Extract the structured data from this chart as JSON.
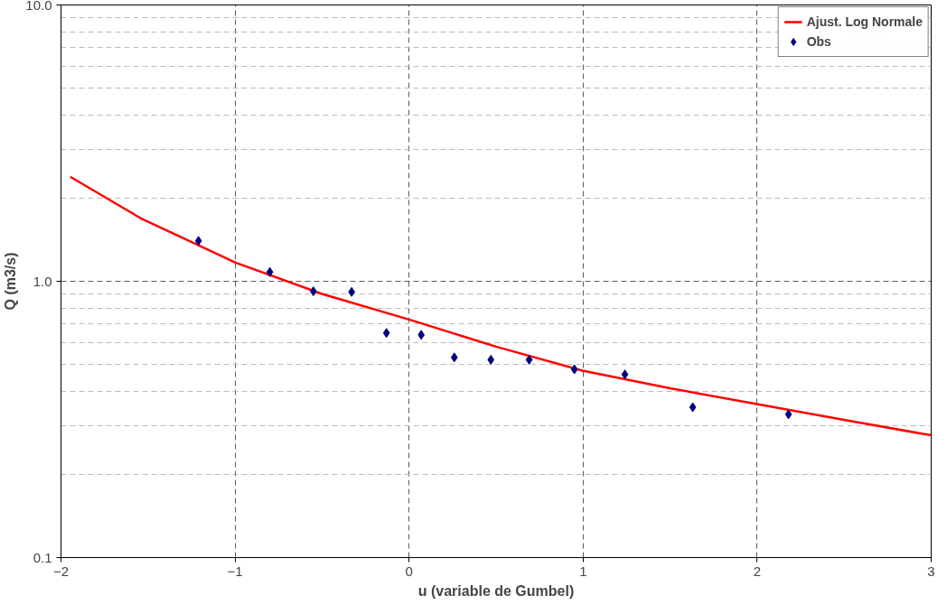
{
  "chart_data": {
    "type": "scatter",
    "xlabel": "u (variable de Gumbel)",
    "ylabel": "Q (m3/s)",
    "log": "y",
    "xlim": [
      -2,
      3
    ],
    "ylim": [
      0.1,
      10
    ],
    "xticks": [
      -2,
      -1,
      0,
      1,
      2,
      3
    ],
    "yticks": [
      {
        "value": 0.1,
        "label": "0.1"
      },
      {
        "value": 1,
        "label": "1.0"
      },
      {
        "value": 10,
        "label": "10.0"
      }
    ],
    "grid": true,
    "legend": "top right",
    "series": [
      {
        "name": "Ajust. Log Normale",
        "type": "line",
        "color": "#ff0000",
        "line_style": "solid",
        "marker": "none",
        "x": [
          -1.947,
          -1.541,
          -1.0,
          -0.5,
          0.009,
          0.5,
          0.997,
          1.5,
          1.985,
          2.5,
          3.0
        ],
        "values": [
          2.39,
          1.69,
          1.17,
          0.9,
          0.724,
          0.58,
          0.475,
          0.41,
          0.361,
          0.315,
          0.277
        ]
      },
      {
        "name": "Obs",
        "type": "scatter",
        "color": "#000080",
        "marker": "diamond",
        "x": [
          -1.21,
          -0.8,
          -0.55,
          -0.33,
          -0.13,
          0.07,
          0.26,
          0.47,
          0.69,
          0.95,
          1.24,
          1.63,
          2.18
        ],
        "values": [
          1.4,
          1.08,
          0.92,
          0.915,
          0.65,
          0.64,
          0.53,
          0.52,
          0.52,
          0.48,
          0.46,
          0.35,
          0.33
        ]
      }
    ]
  }
}
